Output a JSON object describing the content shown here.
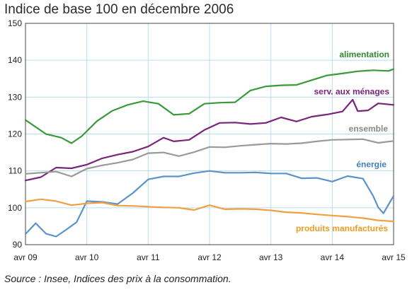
{
  "chart_data": {
    "type": "line",
    "title": "Indice de base 100 en décembre 2006",
    "source": "Source : Insee, Indices des prix à la consommation.",
    "ylim": [
      90,
      150
    ],
    "yticks": [
      "90",
      "100",
      "110",
      "120",
      "130",
      "140",
      "150"
    ],
    "xlim": [
      "2009-04",
      "2015-04"
    ],
    "xticks": [
      {
        "date": "2009-04",
        "label": "avr 09"
      },
      {
        "date": "2010-04",
        "label": "avr 10"
      },
      {
        "date": "2011-04",
        "label": "avr 11"
      },
      {
        "date": "2012-04",
        "label": "avr 12"
      },
      {
        "date": "2013-04",
        "label": "avr 13"
      },
      {
        "date": "2014-04",
        "label": "avr 14"
      },
      {
        "date": "2015-04",
        "label": "avr 15"
      }
    ],
    "grid": true,
    "series": [
      {
        "name": "alimentation",
        "color": "#3a9a3a",
        "label_color": "#2f8a2f",
        "x": [
          "2009-04",
          "2009-08",
          "2009-11",
          "2010-01",
          "2010-03",
          "2010-06",
          "2010-09",
          "2010-12",
          "2011-03",
          "2011-06",
          "2011-09",
          "2011-12",
          "2012-03",
          "2012-06",
          "2012-09",
          "2012-12",
          "2013-03",
          "2013-06",
          "2013-09",
          "2013-12",
          "2014-03",
          "2014-06",
          "2014-09",
          "2014-12",
          "2015-03",
          "2015-04"
        ],
        "values": [
          123.8,
          120,
          119,
          117.5,
          119.4,
          123.5,
          126.3,
          127.9,
          128.9,
          128.2,
          125.2,
          125.5,
          128.2,
          128.5,
          128.6,
          131.8,
          132.9,
          133.2,
          133.3,
          134.6,
          135.9,
          136.4,
          137.0,
          137.3,
          137.1,
          137.6
        ]
      },
      {
        "name": "serv. aux ménages",
        "color": "#7a247a",
        "label_color": "#7a247a",
        "x": [
          "2009-04",
          "2009-07",
          "2009-10",
          "2010-01",
          "2010-04",
          "2010-07",
          "2010-10",
          "2011-01",
          "2011-04",
          "2011-07",
          "2011-09",
          "2011-12",
          "2012-03",
          "2012-06",
          "2012-09",
          "2012-12",
          "2013-03",
          "2013-06",
          "2013-09",
          "2013-12",
          "2014-03",
          "2014-06",
          "2014-08",
          "2014-09",
          "2014-11",
          "2015-01",
          "2015-04"
        ],
        "values": [
          107.4,
          108.3,
          110.9,
          110.7,
          111.7,
          113.4,
          114.4,
          115.2,
          116.6,
          119.0,
          118.0,
          118.4,
          121.1,
          123.0,
          123.1,
          122.7,
          123.0,
          124.5,
          123.4,
          124.7,
          125.3,
          126.1,
          129.3,
          126.2,
          126.4,
          128.3,
          127.9
        ]
      },
      {
        "name": "ensemble",
        "color": "#9a9a9a",
        "label_color": "#888888",
        "x": [
          "2009-04",
          "2009-10",
          "2010-01",
          "2010-04",
          "2010-07",
          "2010-10",
          "2011-01",
          "2011-04",
          "2011-07",
          "2011-10",
          "2012-01",
          "2012-04",
          "2012-07",
          "2012-10",
          "2013-01",
          "2013-04",
          "2013-07",
          "2013-10",
          "2014-01",
          "2014-04",
          "2014-07",
          "2014-10",
          "2015-01",
          "2015-04"
        ],
        "values": [
          109.2,
          109.8,
          108.5,
          110.6,
          111.5,
          112.2,
          113.1,
          114.8,
          115.0,
          114.0,
          115.1,
          116.5,
          116.4,
          116.8,
          117.1,
          117.4,
          117.3,
          117.5,
          118.0,
          118.4,
          118.5,
          118.6,
          117.6,
          118.1
        ]
      },
      {
        "name": "énergie",
        "color": "#5b93c8",
        "label_color": "#3f7fbf",
        "x": [
          "2009-04",
          "2009-06",
          "2009-08",
          "2009-10",
          "2009-12",
          "2010-02",
          "2010-04",
          "2010-07",
          "2010-10",
          "2011-01",
          "2011-04",
          "2011-07",
          "2011-10",
          "2012-01",
          "2012-04",
          "2012-07",
          "2012-10",
          "2013-01",
          "2013-04",
          "2013-07",
          "2013-10",
          "2014-01",
          "2014-04",
          "2014-07",
          "2014-10",
          "2014-12",
          "2015-01",
          "2015-02",
          "2015-04"
        ],
        "values": [
          92.9,
          95.8,
          93.0,
          92.2,
          94.1,
          96.1,
          101.8,
          101.6,
          101.0,
          104.0,
          107.7,
          108.5,
          108.5,
          109.4,
          110.0,
          109.5,
          109.5,
          109.6,
          109.3,
          109.3,
          108.0,
          108.1,
          107.1,
          108.6,
          107.9,
          103.2,
          100.1,
          98.5,
          103.2
        ]
      },
      {
        "name": "produits manufacturés",
        "color": "#f0a040",
        "label_color": "#ee9c22",
        "x": [
          "2009-04",
          "2009-07",
          "2009-10",
          "2010-01",
          "2010-04",
          "2010-07",
          "2010-10",
          "2011-01",
          "2011-04",
          "2011-07",
          "2011-10",
          "2012-01",
          "2012-04",
          "2012-07",
          "2012-10",
          "2013-01",
          "2013-04",
          "2013-07",
          "2013-10",
          "2014-01",
          "2014-04",
          "2014-07",
          "2014-10",
          "2015-01",
          "2015-04"
        ],
        "values": [
          101.7,
          102.3,
          101.8,
          100.7,
          101.2,
          101.4,
          100.6,
          100.5,
          100.3,
          100.1,
          100.0,
          99.4,
          100.7,
          99.6,
          99.7,
          99.6,
          99.3,
          98.8,
          98.6,
          98.2,
          97.9,
          97.6,
          97.2,
          96.6,
          96.3
        ]
      }
    ]
  }
}
